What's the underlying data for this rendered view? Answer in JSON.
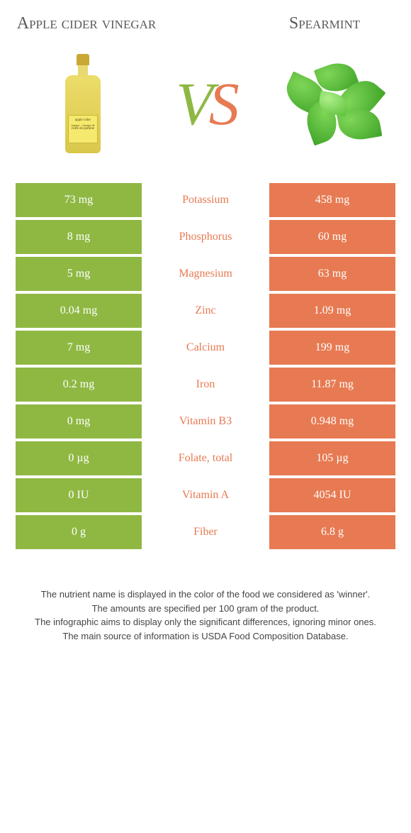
{
  "left_title": "Apple cider vinegar",
  "right_title": "Spearmint",
  "vs": {
    "v": "V",
    "s": "S"
  },
  "colors": {
    "left": "#8fb843",
    "right": "#e77a52",
    "nutrient_default": "#5a5a5a"
  },
  "bottle_label_top": "apple cider",
  "bottle_label_bottom": "cidre de pomme",
  "rows": [
    {
      "nutrient": "Potassium",
      "left": "73 mg",
      "right": "458 mg",
      "winner": "right"
    },
    {
      "nutrient": "Phosphorus",
      "left": "8 mg",
      "right": "60 mg",
      "winner": "right"
    },
    {
      "nutrient": "Magnesium",
      "left": "5 mg",
      "right": "63 mg",
      "winner": "right"
    },
    {
      "nutrient": "Zinc",
      "left": "0.04 mg",
      "right": "1.09 mg",
      "winner": "right"
    },
    {
      "nutrient": "Calcium",
      "left": "7 mg",
      "right": "199 mg",
      "winner": "right"
    },
    {
      "nutrient": "Iron",
      "left": "0.2 mg",
      "right": "11.87 mg",
      "winner": "right"
    },
    {
      "nutrient": "Vitamin B3",
      "left": "0 mg",
      "right": "0.948 mg",
      "winner": "right"
    },
    {
      "nutrient": "Folate, total",
      "left": "0 µg",
      "right": "105 µg",
      "winner": "right"
    },
    {
      "nutrient": "Vitamin A",
      "left": "0 IU",
      "right": "4054 IU",
      "winner": "right"
    },
    {
      "nutrient": "Fiber",
      "left": "0 g",
      "right": "6.8 g",
      "winner": "right"
    }
  ],
  "footer": [
    "The nutrient name is displayed in the color of the food we considered as 'winner'.",
    "The amounts are specified per 100 gram of the product.",
    "The infographic aims to display only the significant differences, ignoring minor ones.",
    "The main source of information is USDA Food Composition Database."
  ]
}
